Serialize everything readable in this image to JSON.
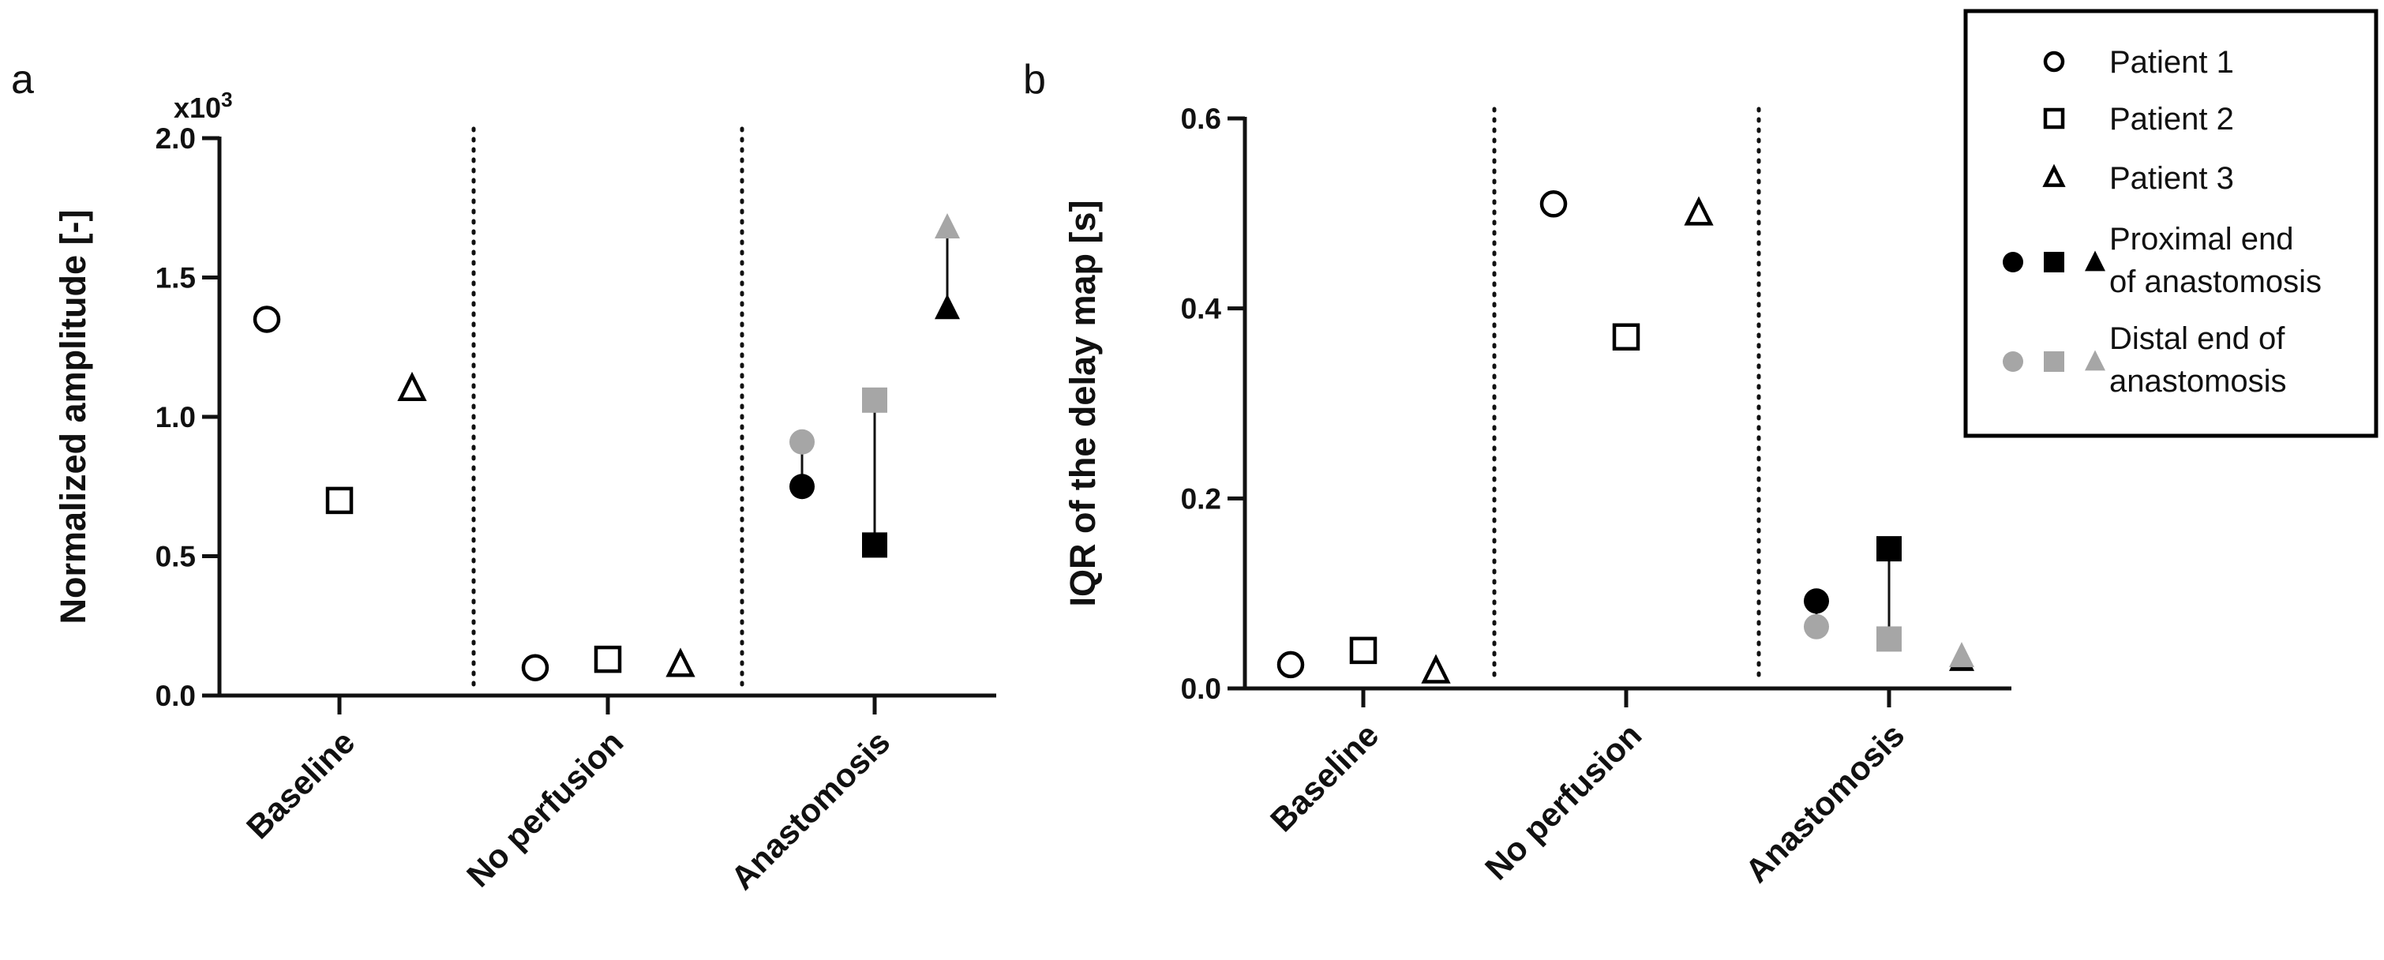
{
  "chart_data": [
    {
      "type": "scatter",
      "panel": "a",
      "ylabel": "Normalized amplitude [-]",
      "y_multiplier": "x10",
      "y_multiplier_exp": "3",
      "ylim": [
        0,
        2.0
      ],
      "yticks": [
        "0.0",
        "0.5",
        "1.0",
        "1.5",
        "2.0"
      ],
      "categories": [
        "Baseline",
        "No perfusion",
        "Anastomosis"
      ],
      "grid": false,
      "series": [
        {
          "name": "Patient 1",
          "marker": "circle",
          "fill": "open",
          "category": "Baseline",
          "value": 1.35
        },
        {
          "name": "Patient 2",
          "marker": "square",
          "fill": "open",
          "category": "Baseline",
          "value": 0.7
        },
        {
          "name": "Patient 3",
          "marker": "triangle",
          "fill": "open",
          "category": "Baseline",
          "value": 1.1
        },
        {
          "name": "Patient 1",
          "marker": "circle",
          "fill": "open",
          "category": "No perfusion",
          "value": 0.1
        },
        {
          "name": "Patient 2",
          "marker": "square",
          "fill": "open",
          "category": "No perfusion",
          "value": 0.13
        },
        {
          "name": "Patient 3",
          "marker": "triangle",
          "fill": "open",
          "category": "No perfusion",
          "value": 0.11
        },
        {
          "name": "Patient 1 proximal",
          "marker": "circle",
          "fill": "black",
          "category": "Anastomosis",
          "value": 0.75
        },
        {
          "name": "Patient 1 distal",
          "marker": "circle",
          "fill": "gray",
          "category": "Anastomosis",
          "value": 0.91
        },
        {
          "name": "Patient 2 proximal",
          "marker": "square",
          "fill": "black",
          "category": "Anastomosis",
          "value": 0.54
        },
        {
          "name": "Patient 2 distal",
          "marker": "square",
          "fill": "gray",
          "category": "Anastomosis",
          "value": 1.06
        },
        {
          "name": "Patient 3 proximal",
          "marker": "triangle",
          "fill": "black",
          "category": "Anastomosis",
          "value": 1.39
        },
        {
          "name": "Patient 3 distal",
          "marker": "triangle",
          "fill": "gray",
          "category": "Anastomosis",
          "value": 1.68
        }
      ]
    },
    {
      "type": "scatter",
      "panel": "b",
      "ylabel": "IQR of the delay map [s]",
      "ylim": [
        0,
        0.6
      ],
      "yticks": [
        "0.0",
        "0.2",
        "0.4",
        "0.6"
      ],
      "categories": [
        "Baseline",
        "No perfusion",
        "Anastomosis"
      ],
      "grid": false,
      "series": [
        {
          "name": "Patient 1",
          "marker": "circle",
          "fill": "open",
          "category": "Baseline",
          "value": 0.025
        },
        {
          "name": "Patient 2",
          "marker": "square",
          "fill": "open",
          "category": "Baseline",
          "value": 0.04
        },
        {
          "name": "Patient 3",
          "marker": "triangle",
          "fill": "open",
          "category": "Baseline",
          "value": 0.018
        },
        {
          "name": "Patient 1",
          "marker": "circle",
          "fill": "open",
          "category": "No perfusion",
          "value": 0.51
        },
        {
          "name": "Patient 2",
          "marker": "square",
          "fill": "open",
          "category": "No perfusion",
          "value": 0.37
        },
        {
          "name": "Patient 3",
          "marker": "triangle",
          "fill": "open",
          "category": "No perfusion",
          "value": 0.5
        },
        {
          "name": "Patient 1 proximal",
          "marker": "circle",
          "fill": "black",
          "category": "Anastomosis",
          "value": 0.092
        },
        {
          "name": "Patient 1 distal",
          "marker": "circle",
          "fill": "gray",
          "category": "Anastomosis",
          "value": 0.065
        },
        {
          "name": "Patient 2 proximal",
          "marker": "square",
          "fill": "black",
          "category": "Anastomosis",
          "value": 0.147
        },
        {
          "name": "Patient 2 distal",
          "marker": "square",
          "fill": "gray",
          "category": "Anastomosis",
          "value": 0.052
        },
        {
          "name": "Patient 3 proximal",
          "marker": "triangle",
          "fill": "black",
          "category": "Anastomosis",
          "value": 0.03
        },
        {
          "name": "Patient 3 distal",
          "marker": "triangle",
          "fill": "gray",
          "category": "Anastomosis",
          "value": 0.034
        }
      ]
    }
  ],
  "legend": {
    "placement": "top-right",
    "items": [
      {
        "label_lines": [
          "Patient 1"
        ],
        "markers": [
          {
            "shape": "circle",
            "fill": "open"
          }
        ]
      },
      {
        "label_lines": [
          "Patient 2"
        ],
        "markers": [
          {
            "shape": "square",
            "fill": "open"
          }
        ]
      },
      {
        "label_lines": [
          "Patient 3"
        ],
        "markers": [
          {
            "shape": "triangle",
            "fill": "open"
          }
        ]
      },
      {
        "label_lines": [
          "Proximal end",
          "of anastomosis"
        ],
        "markers": [
          {
            "shape": "circle",
            "fill": "black"
          },
          {
            "shape": "square",
            "fill": "black"
          },
          {
            "shape": "triangle",
            "fill": "black"
          }
        ]
      },
      {
        "label_lines": [
          "Distal end of",
          "anastomosis"
        ],
        "markers": [
          {
            "shape": "circle",
            "fill": "gray"
          },
          {
            "shape": "square",
            "fill": "gray"
          },
          {
            "shape": "triangle",
            "fill": "gray"
          }
        ]
      }
    ]
  },
  "colors": {
    "black": "#000000",
    "gray": "#a6a6a6",
    "open": "#ffffff",
    "stroke": "#000000"
  }
}
